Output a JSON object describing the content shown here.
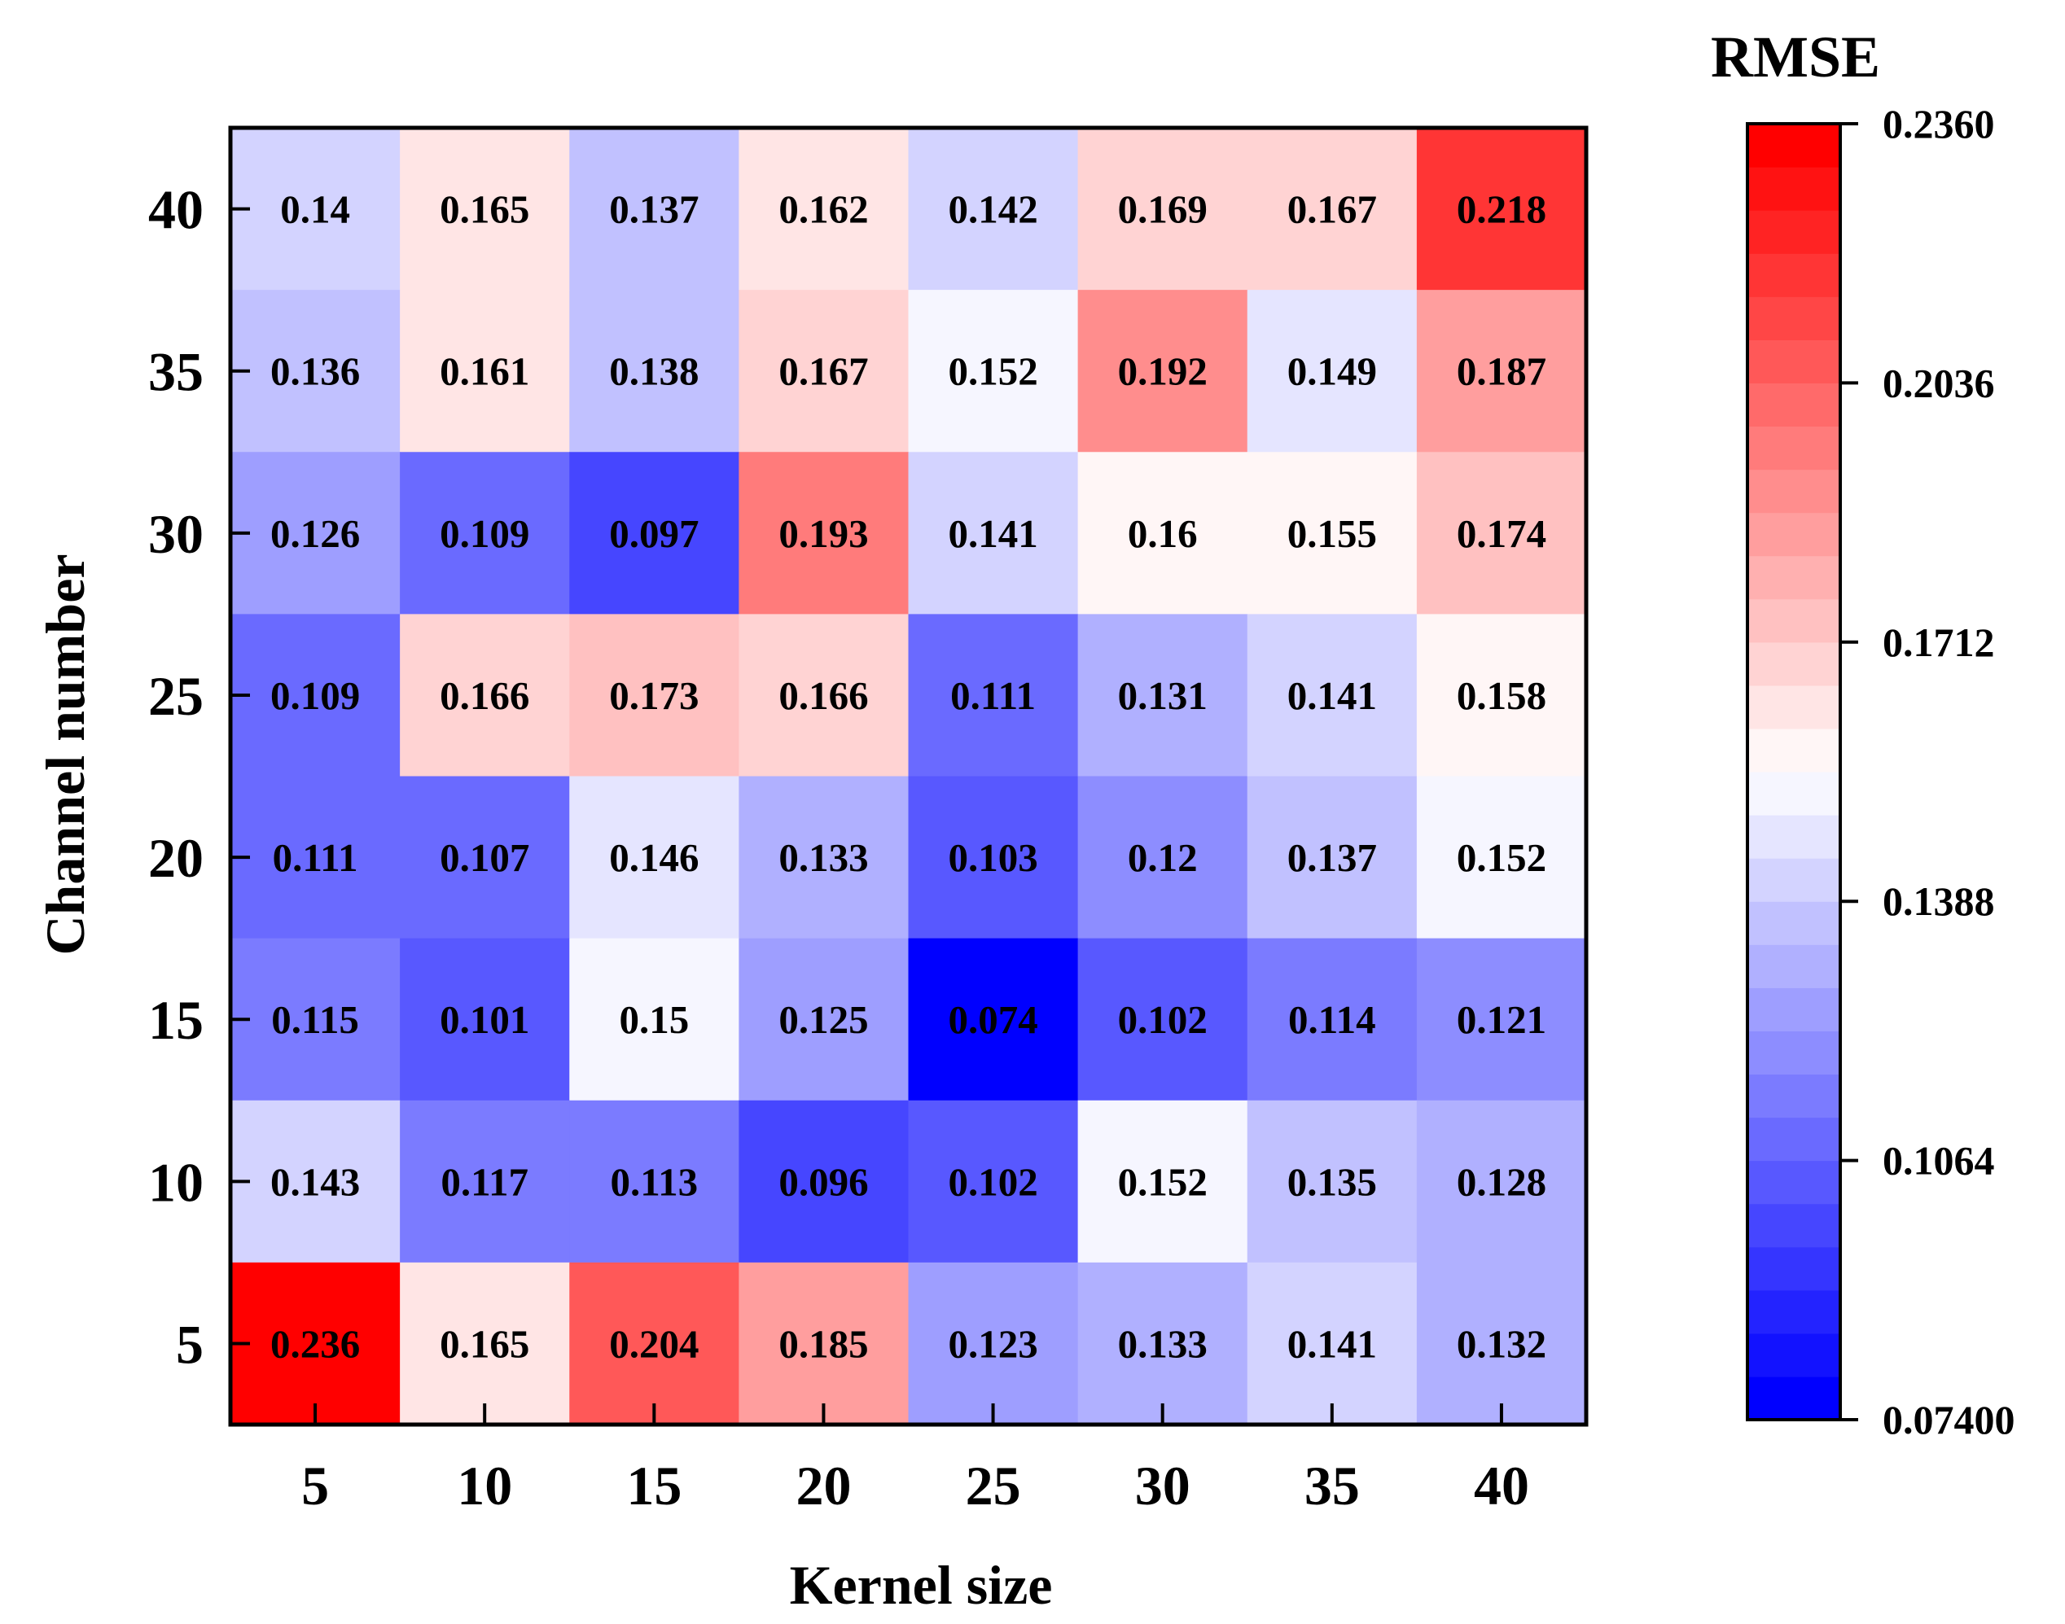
{
  "chart_data": {
    "type": "heatmap",
    "xlabel": "Kernel size",
    "ylabel": "Channel number",
    "x_categories": [
      "5",
      "10",
      "15",
      "20",
      "25",
      "30",
      "35",
      "40"
    ],
    "y_categories": [
      "40",
      "35",
      "30",
      "25",
      "20",
      "15",
      "10",
      "5"
    ],
    "values": [
      [
        0.14,
        0.165,
        0.137,
        0.162,
        0.142,
        0.169,
        0.167,
        0.218
      ],
      [
        0.136,
        0.161,
        0.138,
        0.167,
        0.152,
        0.192,
        0.149,
        0.187
      ],
      [
        0.126,
        0.109,
        0.097,
        0.193,
        0.141,
        0.16,
        0.155,
        0.174
      ],
      [
        0.109,
        0.166,
        0.173,
        0.166,
        0.111,
        0.131,
        0.141,
        0.158
      ],
      [
        0.111,
        0.107,
        0.146,
        0.133,
        0.103,
        0.12,
        0.137,
        0.152
      ],
      [
        0.115,
        0.101,
        0.15,
        0.125,
        0.074,
        0.102,
        0.114,
        0.121
      ],
      [
        0.143,
        0.117,
        0.113,
        0.096,
        0.102,
        0.152,
        0.135,
        0.128
      ],
      [
        0.236,
        0.165,
        0.204,
        0.185,
        0.123,
        0.133,
        0.141,
        0.132
      ]
    ],
    "value_labels": [
      [
        "0.14",
        "0.165",
        "0.137",
        "0.162",
        "0.142",
        "0.169",
        "0.167",
        "0.218"
      ],
      [
        "0.136",
        "0.161",
        "0.138",
        "0.167",
        "0.152",
        "0.192",
        "0.149",
        "0.187"
      ],
      [
        "0.126",
        "0.109",
        "0.097",
        "0.193",
        "0.141",
        "0.16",
        "0.155",
        "0.174"
      ],
      [
        "0.109",
        "0.166",
        "0.173",
        "0.166",
        "0.111",
        "0.131",
        "0.141",
        "0.158"
      ],
      [
        "0.111",
        "0.107",
        "0.146",
        "0.133",
        "0.103",
        "0.12",
        "0.137",
        "0.152"
      ],
      [
        "0.115",
        "0.101",
        "0.15",
        "0.125",
        "0.074",
        "0.102",
        "0.114",
        "0.121"
      ],
      [
        "0.143",
        "0.117",
        "0.113",
        "0.096",
        "0.102",
        "0.152",
        "0.135",
        "0.128"
      ],
      [
        "0.236",
        "0.165",
        "0.204",
        "0.185",
        "0.123",
        "0.133",
        "0.141",
        "0.132"
      ]
    ],
    "colorbar": {
      "title": "RMSE",
      "min": 0.074,
      "max": 0.236,
      "levels": 30,
      "tick_values": [
        0.236,
        0.2036,
        0.1712,
        0.1388,
        0.1064,
        0.074
      ],
      "tick_labels": [
        "0.2360",
        "0.2036",
        "0.1712",
        "0.1388",
        "0.1064",
        "0.07400"
      ],
      "colors": [
        "#0000ff",
        "#ffffff",
        "#ff0000"
      ]
    }
  }
}
